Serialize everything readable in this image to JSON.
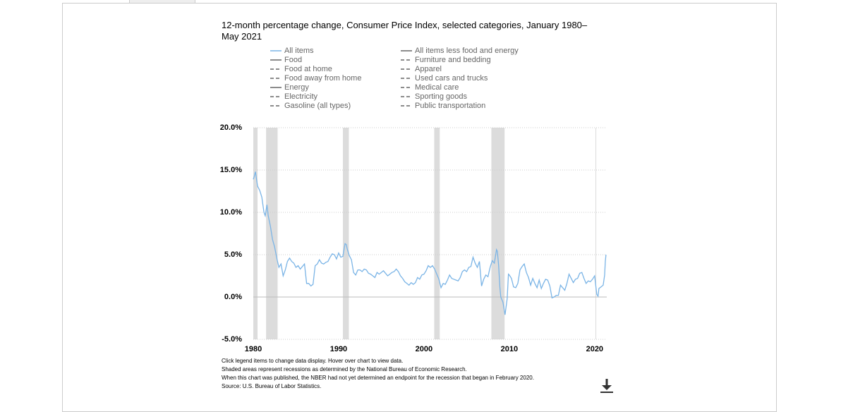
{
  "chart_data": {
    "type": "line",
    "title": "12-month percentage change, Consumer Price Index, selected categories, January 1980–May 2021",
    "x": [
      1980.0,
      1980.1,
      1980.25,
      1980.5,
      1980.75,
      1981.0,
      1981.25,
      1981.4,
      1981.6,
      1981.75,
      1982.0,
      1982.25,
      1982.5,
      1982.75,
      1983.0,
      1983.25,
      1983.5,
      1983.75,
      1984.0,
      1984.25,
      1984.5,
      1984.75,
      1985.0,
      1985.25,
      1985.5,
      1985.75,
      1986.0,
      1986.25,
      1986.5,
      1986.75,
      1987.0,
      1987.25,
      1987.5,
      1987.75,
      1988.0,
      1988.25,
      1988.5,
      1988.75,
      1989.0,
      1989.25,
      1989.5,
      1989.75,
      1990.0,
      1990.25,
      1990.5,
      1990.75,
      1990.9,
      1991.0,
      1991.25,
      1991.5,
      1991.75,
      1992.0,
      1992.25,
      1992.5,
      1992.75,
      1993.0,
      1993.25,
      1993.5,
      1993.75,
      1994.0,
      1994.25,
      1994.5,
      1994.75,
      1995.0,
      1995.25,
      1995.5,
      1995.75,
      1996.0,
      1996.25,
      1996.5,
      1996.75,
      1997.0,
      1997.25,
      1997.5,
      1997.75,
      1998.0,
      1998.25,
      1998.5,
      1998.75,
      1999.0,
      1999.25,
      1999.5,
      1999.75,
      2000.0,
      2000.25,
      2000.5,
      2000.75,
      2001.0,
      2001.25,
      2001.5,
      2001.75,
      2002.0,
      2002.25,
      2002.5,
      2002.75,
      2003.0,
      2003.25,
      2003.5,
      2003.75,
      2004.0,
      2004.25,
      2004.5,
      2004.75,
      2005.0,
      2005.25,
      2005.5,
      2005.75,
      2006.0,
      2006.25,
      2006.5,
      2006.75,
      2007.0,
      2007.25,
      2007.5,
      2007.75,
      2008.0,
      2008.25,
      2008.5,
      2008.6,
      2008.75,
      2008.9,
      2009.0,
      2009.25,
      2009.5,
      2009.75,
      2009.9,
      2010.0,
      2010.25,
      2010.5,
      2010.75,
      2011.0,
      2011.25,
      2011.5,
      2011.75,
      2012.0,
      2012.25,
      2012.5,
      2012.75,
      2013.0,
      2013.25,
      2013.5,
      2013.75,
      2014.0,
      2014.25,
      2014.5,
      2014.75,
      2015.0,
      2015.25,
      2015.5,
      2015.75,
      2016.0,
      2016.25,
      2016.5,
      2016.75,
      2017.0,
      2017.25,
      2017.5,
      2017.75,
      2018.0,
      2018.25,
      2018.5,
      2018.75,
      2019.0,
      2019.25,
      2019.5,
      2019.75,
      2020.0,
      2020.25,
      2020.4,
      2020.5,
      2020.75,
      2021.0,
      2021.17,
      2021.25,
      2021.33
    ],
    "series": [
      {
        "name": "All items",
        "color": "#7ab4e6",
        "values": [
          13.9,
          14.2,
          14.8,
          13.1,
          12.6,
          11.8,
          10.0,
          9.6,
          10.9,
          9.6,
          8.4,
          6.8,
          5.9,
          4.6,
          3.5,
          3.9,
          2.5,
          3.2,
          4.2,
          4.6,
          4.2,
          4.0,
          3.5,
          3.7,
          3.3,
          3.6,
          3.9,
          1.6,
          1.6,
          1.3,
          1.5,
          3.7,
          3.9,
          4.4,
          4.0,
          3.9,
          4.1,
          4.2,
          4.7,
          5.1,
          5.0,
          4.5,
          5.2,
          4.7,
          4.8,
          6.3,
          6.2,
          5.7,
          4.9,
          4.4,
          2.9,
          2.6,
          3.2,
          3.2,
          3.0,
          3.3,
          3.2,
          2.8,
          2.7,
          2.5,
          2.3,
          2.9,
          2.7,
          2.9,
          3.1,
          2.8,
          2.5,
          2.7,
          2.9,
          3.0,
          3.3,
          3.0,
          2.5,
          2.2,
          1.8,
          1.6,
          1.4,
          1.7,
          1.5,
          1.7,
          2.3,
          2.1,
          2.6,
          2.7,
          3.1,
          3.7,
          3.5,
          3.7,
          3.3,
          2.7,
          2.1,
          1.1,
          1.6,
          1.5,
          2.0,
          2.6,
          2.2,
          2.1,
          2.0,
          1.9,
          2.3,
          3.0,
          3.2,
          3.0,
          3.5,
          3.6,
          4.7,
          4.0,
          3.5,
          4.2,
          1.3,
          2.1,
          2.6,
          2.4,
          3.5,
          4.3,
          4.0,
          5.6,
          5.4,
          3.7,
          1.1,
          0.0,
          -0.6,
          -2.1,
          -0.2,
          2.7,
          2.6,
          2.2,
          1.2,
          1.1,
          1.6,
          3.2,
          3.6,
          3.9,
          2.9,
          2.3,
          1.4,
          2.2,
          1.6,
          1.1,
          2.0,
          1.0,
          1.6,
          2.1,
          2.0,
          1.3,
          -0.1,
          0.0,
          0.2,
          0.2,
          1.4,
          1.1,
          0.8,
          1.6,
          2.7,
          2.2,
          1.7,
          2.1,
          2.2,
          2.8,
          2.9,
          2.2,
          1.6,
          1.9,
          1.8,
          2.1,
          2.5,
          0.3,
          0.1,
          1.0,
          1.2,
          1.4,
          2.6,
          4.2,
          5.0
        ]
      }
    ],
    "inactive_color": "#666666",
    "inactive_series": [
      {
        "name": "Food",
        "dashed": false
      },
      {
        "name": "Food at home",
        "dashed": true
      },
      {
        "name": "Food away from home",
        "dashed": true
      },
      {
        "name": "Energy",
        "dashed": false
      },
      {
        "name": "Electricity",
        "dashed": true
      },
      {
        "name": "Gasoline (all types)",
        "dashed": true
      },
      {
        "name": "All items less food and energy",
        "dashed": false
      },
      {
        "name": "Furniture and bedding",
        "dashed": true
      },
      {
        "name": "Apparel",
        "dashed": true
      },
      {
        "name": "Used cars and trucks",
        "dashed": true
      },
      {
        "name": "Medical care",
        "dashed": true
      },
      {
        "name": "Sporting goods",
        "dashed": true
      },
      {
        "name": "Public transportation",
        "dashed": true
      }
    ],
    "recessions": [
      [
        1980.0,
        1980.5
      ],
      [
        1981.5,
        1982.85
      ],
      [
        1990.5,
        1991.2
      ],
      [
        2001.2,
        2001.85
      ],
      [
        2007.9,
        2009.45
      ],
      [
        2020.1,
        2020.18
      ]
    ],
    "recession_color": "#dcdcdc",
    "xlim": [
      1980,
      2021.42
    ],
    "xticks": [
      1980,
      1990,
      2000,
      2010,
      2020
    ],
    "ylim": [
      -5,
      20
    ],
    "yticks": [
      {
        "value": 20,
        "label": "20.0%"
      },
      {
        "value": 15,
        "label": "15.0%"
      },
      {
        "value": 10,
        "label": "10.0%"
      },
      {
        "value": 5,
        "label": "5.0%"
      },
      {
        "value": 0,
        "label": "0.0%"
      },
      {
        "value": -5,
        "label": "-5.0%"
      }
    ],
    "grid": true,
    "notes": [
      "Click legend items to change data display. Hover over chart to view data.",
      "Shaded areas represent recessions as determined by the National Bureau of Economic Research.",
      "When this chart was published, the NBER had not yet determined an endpoint for the recession that began in February 2020.",
      "Source: U.S. Bureau of Labor Statistics."
    ]
  }
}
